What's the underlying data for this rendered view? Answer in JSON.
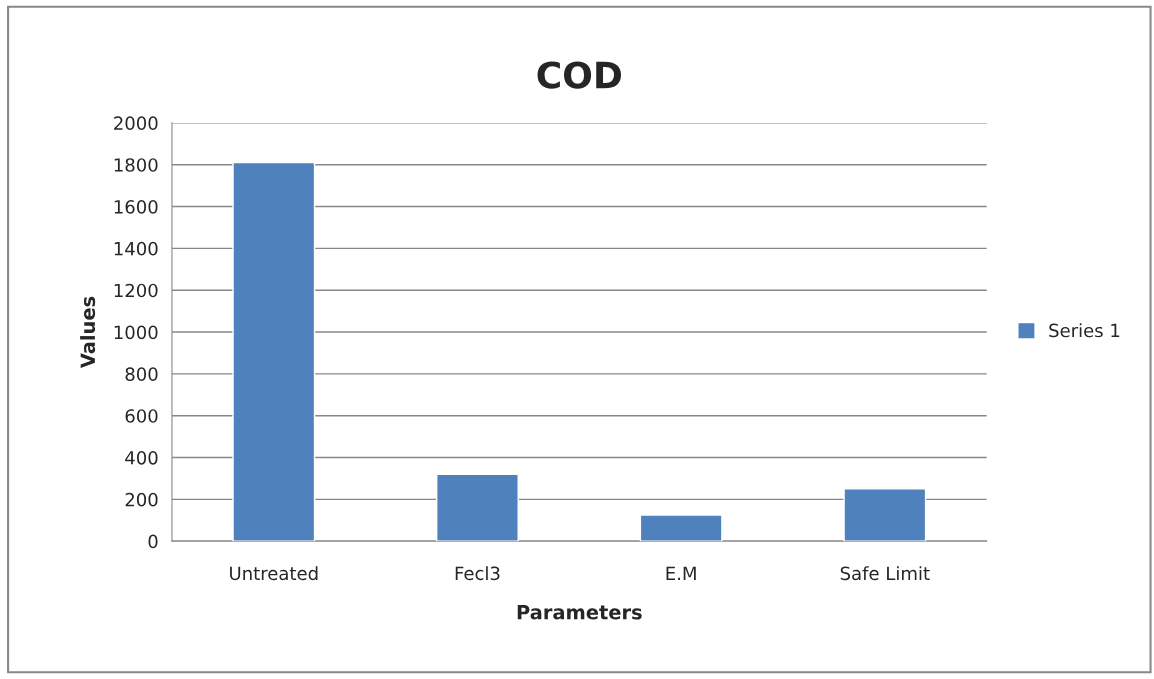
{
  "chart_data": {
    "type": "bar",
    "title": "COD",
    "xlabel": "Parameters",
    "ylabel": "Values",
    "categories": [
      "Untreated",
      "Fecl3",
      "E.M",
      "Safe Limit"
    ],
    "series": [
      {
        "name": "Series 1",
        "color": "#4f81bd",
        "values": [
          1810,
          320,
          125,
          250
        ]
      }
    ],
    "ylim": [
      0,
      2000
    ],
    "yticks": [
      0,
      200,
      400,
      600,
      800,
      1000,
      1200,
      1400,
      1600,
      1800,
      2000
    ],
    "grid": "y",
    "legend": "right"
  }
}
